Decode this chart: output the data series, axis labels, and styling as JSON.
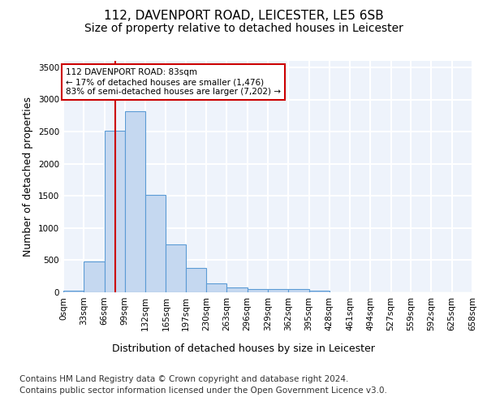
{
  "title_line1": "112, DAVENPORT ROAD, LEICESTER, LE5 6SB",
  "title_line2": "Size of property relative to detached houses in Leicester",
  "xlabel": "Distribution of detached houses by size in Leicester",
  "ylabel": "Number of detached properties",
  "bar_color": "#c5d8f0",
  "bar_edge_color": "#5b9bd5",
  "background_color": "#eef3fb",
  "grid_color": "#ffffff",
  "vline_color": "#cc0000",
  "vline_x": 83,
  "annotation_text": "112 DAVENPORT ROAD: 83sqm\n← 17% of detached houses are smaller (1,476)\n83% of semi-detached houses are larger (7,202) →",
  "annotation_box_color": "#ffffff",
  "annotation_box_edge": "#cc0000",
  "bin_edges": [
    0,
    33,
    66,
    99,
    132,
    165,
    197,
    230,
    263,
    296,
    329,
    362,
    395,
    428,
    461,
    494,
    527,
    559,
    592,
    625,
    658
  ],
  "bar_heights": [
    25,
    475,
    2510,
    2820,
    1520,
    750,
    385,
    140,
    75,
    55,
    55,
    55,
    30,
    0,
    0,
    0,
    0,
    0,
    0,
    0
  ],
  "ylim": [
    0,
    3600
  ],
  "yticks": [
    0,
    500,
    1000,
    1500,
    2000,
    2500,
    3000,
    3500
  ],
  "footer_line1": "Contains HM Land Registry data © Crown copyright and database right 2024.",
  "footer_line2": "Contains public sector information licensed under the Open Government Licence v3.0.",
  "title_fontsize": 11,
  "subtitle_fontsize": 10,
  "axis_label_fontsize": 9,
  "tick_fontsize": 7.5,
  "footer_fontsize": 7.5
}
